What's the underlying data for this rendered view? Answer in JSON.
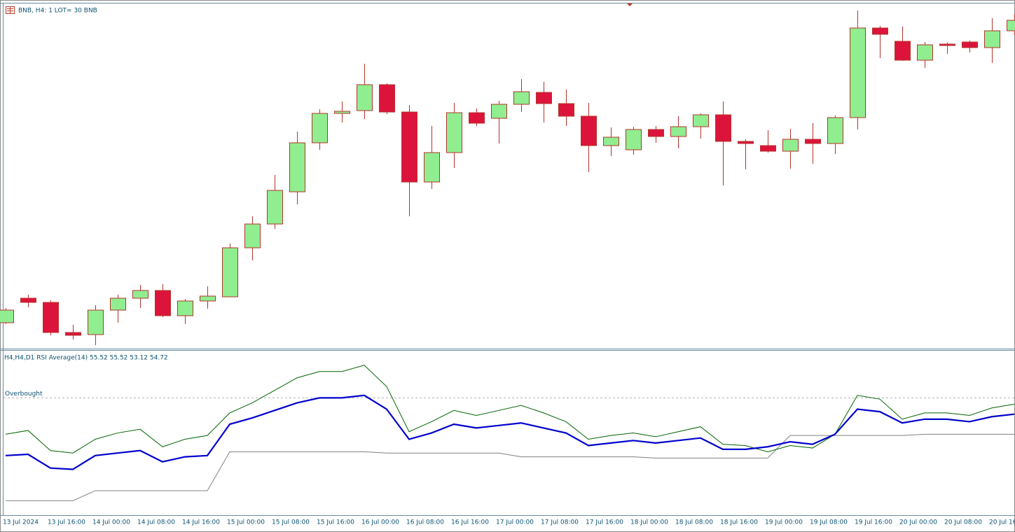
{
  "chart_data": [
    {
      "type": "candlestick",
      "title": "BNB, H4:  1 LOT= 30 BNB",
      "categories": [
        "13 Jul 2024",
        null,
        "13 Jul 16:00",
        null,
        "14 Jul 00:00",
        null,
        "14 Jul 08:00",
        null,
        "14 Jul 16:00",
        null,
        "15 Jul 00:00",
        null,
        "15 Jul 08:00",
        null,
        "15 Jul 16:00",
        null,
        "16 Jul 00:00",
        null,
        "16 Jul 08:00",
        null,
        "16 Jul 16:00",
        null,
        "17 Jul 00:00",
        null,
        "17 Jul 08:00",
        null,
        "17 Jul 16:00",
        null,
        "18 Jul 00:00",
        null,
        "18 Jul 08:00",
        null,
        "18 Jul 16:00",
        null,
        "19 Jul 00:00",
        null,
        "19 Jul 08:00",
        null,
        "19 Jul 16:00",
        null,
        "20 Jul 00:00",
        null,
        "20 Jul 08:00",
        null,
        "20 Jul 16",
        null
      ],
      "open": [
        39,
        74,
        68,
        25,
        22,
        57,
        74,
        85,
        49,
        70,
        76,
        146,
        180,
        226,
        296,
        338,
        342,
        379,
        340,
        240,
        282,
        339,
        331,
        351,
        368,
        352,
        334,
        292,
        286,
        315,
        305,
        319,
        336,
        298,
        292,
        284,
        301,
        295,
        332,
        460,
        441,
        414,
        437,
        440,
        432,
        456
      ],
      "high": [
        60,
        79,
        71,
        36,
        64,
        79,
        93,
        94,
        73,
        91,
        152,
        191,
        250,
        312,
        344,
        355,
        409,
        381,
        350,
        320,
        353,
        345,
        356,
        387,
        383,
        372,
        353,
        318,
        319,
        320,
        334,
        338,
        355,
        301,
        314,
        316,
        324,
        335,
        485,
        463,
        462,
        440,
        439,
        442,
        474,
        480
      ],
      "low": [
        37,
        61,
        21,
        15,
        7,
        39,
        60,
        47,
        37,
        59,
        76,
        128,
        173,
        208,
        286,
        325,
        330,
        337,
        191,
        230,
        260,
        320,
        295,
        340,
        325,
        320,
        254,
        277,
        279,
        296,
        288,
        302,
        235,
        258,
        282,
        259,
        266,
        280,
        315,
        417,
        413,
        403,
        423,
        425,
        410,
        450
      ],
      "close": [
        57,
        68,
        25,
        21,
        57,
        74,
        85,
        49,
        70,
        77,
        146,
        180,
        228,
        296,
        338,
        341,
        379,
        340,
        240,
        282,
        339,
        324,
        351,
        369,
        352,
        334,
        292,
        304,
        315,
        305,
        319,
        336,
        298,
        295,
        284,
        301,
        295,
        332,
        460,
        451,
        414,
        436,
        435,
        432,
        456,
        471
      ],
      "ylim": [
        3,
        495
      ],
      "up_color": "#90ee90",
      "down_color": "#dc143c",
      "border_color": "#b5332a"
    },
    {
      "type": "line",
      "title": "H4,H4,D1 RSI Average(14) 55.52 55.52 53.12 54.72",
      "series": [
        {
          "color": "#808080",
          "width": 1,
          "values": [
            47.8,
            47.8,
            47.8,
            47.8,
            48.6,
            48.6,
            48.6,
            48.6,
            48.6,
            48.6,
            51.7,
            51.7,
            51.7,
            51.7,
            51.7,
            51.7,
            51.7,
            51.6,
            51.6,
            51.6,
            51.6,
            51.6,
            51.6,
            51.3,
            51.3,
            51.3,
            51.3,
            51.3,
            51.3,
            51.2,
            51.2,
            51.2,
            51.2,
            51.2,
            51.2,
            53.0,
            53.0,
            53.0,
            53.0,
            53.0,
            53.0,
            53.1,
            53.1,
            53.1,
            53.1,
            53.1
          ]
        },
        {
          "color": "#006400",
          "width": 1,
          "values": [
            53.1,
            53.4,
            51.8,
            51.6,
            52.7,
            53.2,
            53.5,
            52.1,
            52.7,
            53.0,
            54.8,
            55.6,
            56.6,
            57.6,
            58.1,
            58.1,
            58.6,
            56.9,
            53.3,
            54.1,
            55.0,
            54.6,
            55.0,
            55.4,
            54.8,
            54.1,
            52.7,
            53.0,
            53.2,
            52.9,
            53.3,
            53.7,
            52.3,
            52.2,
            51.7,
            52.2,
            52.0,
            53.1,
            56.2,
            55.9,
            54.3,
            54.8,
            54.8,
            54.6,
            55.2,
            55.5
          ]
        },
        {
          "color": "#0000cd",
          "width": 2.2,
          "values": [
            51.4,
            51.5,
            50.4,
            50.3,
            51.4,
            51.6,
            51.8,
            50.9,
            51.3,
            51.4,
            53.9,
            54.4,
            55.0,
            55.6,
            56.0,
            56.0,
            56.2,
            55.1,
            52.7,
            53.2,
            53.9,
            53.6,
            53.8,
            54.0,
            53.6,
            53.2,
            52.2,
            52.4,
            52.6,
            52.4,
            52.6,
            52.8,
            51.9,
            51.9,
            52.1,
            52.5,
            52.3,
            53.1,
            55.1,
            54.9,
            54.0,
            54.3,
            54.3,
            54.1,
            54.5,
            54.7
          ]
        }
      ],
      "level": {
        "label": "Overbought",
        "value": 56.0
      },
      "ylim": [
        46.7,
        59.65
      ]
    }
  ]
}
